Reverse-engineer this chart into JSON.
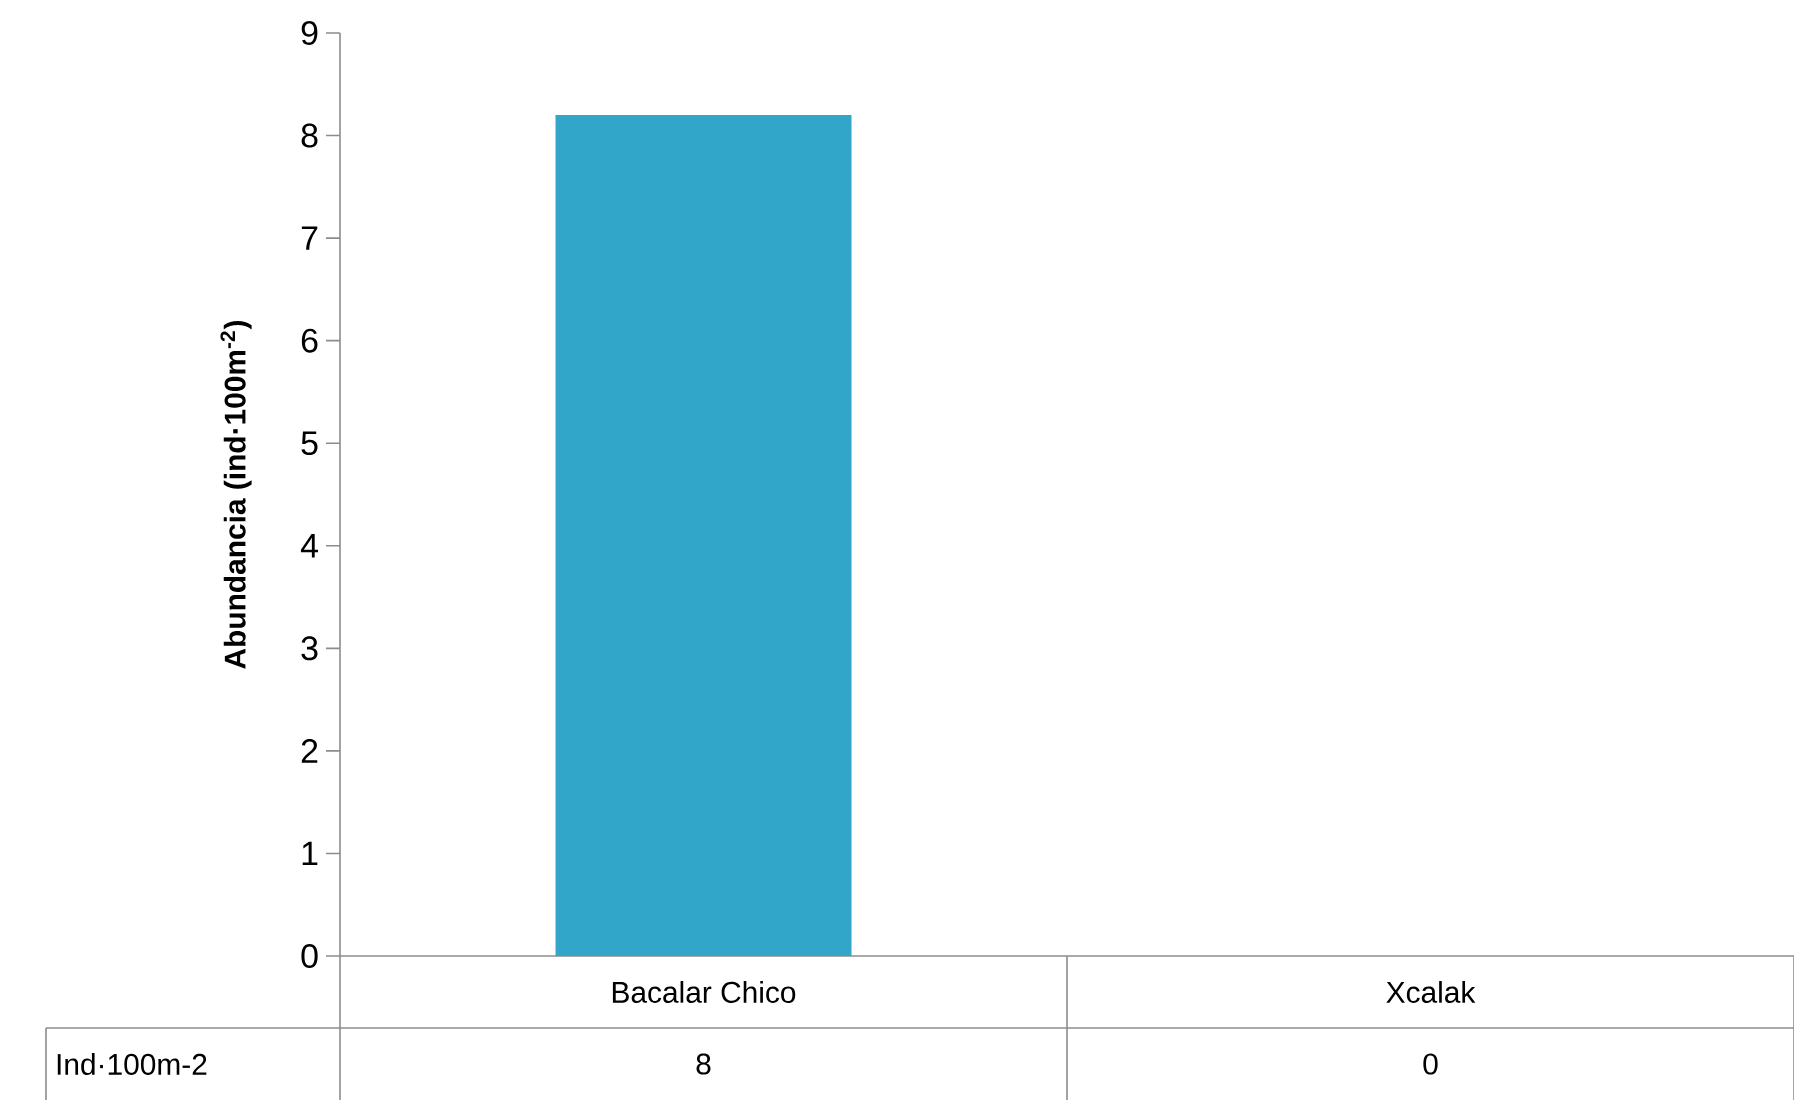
{
  "chart_data": {
    "type": "bar",
    "ylabel": "Abundancia (ind·100m$^{-2}$)",
    "categories": [
      "Bacalar Chico",
      "Xcalak"
    ],
    "series": [
      {
        "name": "Ind·100m-2",
        "color": "#31a6c9",
        "values": [
          8.2,
          0
        ],
        "value_labels": [
          "8",
          "0"
        ]
      }
    ],
    "ylim": [
      0,
      9
    ],
    "yticks": [
      0,
      1,
      2,
      3,
      4,
      5,
      6,
      7,
      8,
      9
    ],
    "grid": false,
    "legend": false
  }
}
